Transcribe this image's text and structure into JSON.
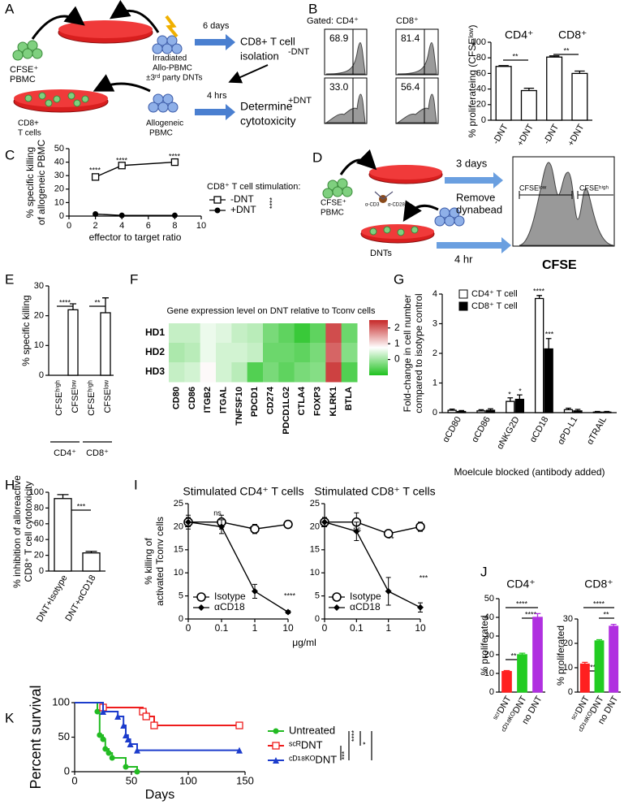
{
  "panels": [
    "A",
    "B",
    "C",
    "D",
    "E",
    "F",
    "G",
    "H",
    "I",
    "J",
    "K"
  ],
  "diagram_a": {
    "texts": [
      "CFSE⁺",
      "PBMC",
      "Irradiated",
      "Allo-PBMC",
      "±3ʳᵈ party DNTs",
      "6 days",
      "CD8+ T cell",
      "isolation",
      "CD8+",
      "T cells",
      "Allogeneic",
      "PBMC",
      "4 hrs",
      "Determine",
      "cytotoxicity"
    ]
  },
  "flow_b": {
    "col_labels": [
      "Gated: CD4⁺",
      "CD8⁺"
    ],
    "row_labels": [
      "-DNT",
      "+DNT"
    ],
    "values": [
      [
        68.9,
        81.4
      ],
      [
        33,
        56.4
      ]
    ],
    "value_labels": [
      [
        "68.9",
        "81.4"
      ],
      [
        "33.0",
        "56.4"
      ]
    ]
  },
  "diagram_d": {
    "texts": [
      "CFSE⁺",
      "PBMC",
      "α-CD3",
      "α-CD28",
      "3 days",
      "Remove",
      "dynabead",
      "4 hr",
      "DNTs",
      "CFSEˡᵒʷ",
      "CFSEʰⁱᵍʰ",
      "CFSE"
    ]
  },
  "chart_data": [
    {
      "type": "bar",
      "categories": [
        "-DNT",
        "+DNT",
        "-DNT",
        "+DNT"
      ],
      "values": [
        69,
        38,
        81,
        60
      ],
      "errors": [
        1,
        3,
        1.5,
        3
      ],
      "color": "#ffffff",
      "stroke": "#000000",
      "ylim": [
        0,
        100
      ],
      "yticks": [
        0,
        20,
        40,
        60,
        80,
        100
      ],
      "ylabel": [
        "% proliferateing (CFSEˡᵒʷ)"
      ],
      "groups": [
        "CD4⁺",
        "CD8⁺"
      ],
      "annotations": [
        "**",
        "**"
      ]
    },
    {
      "type": "line",
      "x": [
        2,
        4,
        8
      ],
      "xlim": [
        0,
        10
      ],
      "xticks": [
        0,
        2,
        4,
        6,
        8,
        10
      ],
      "ylim": [
        0,
        50
      ],
      "yticks": [
        0,
        10,
        20,
        30,
        40,
        50
      ],
      "xlabel": "effector to target ratio",
      "ylabel": [
        "% specific killing",
        "of allogeneic PBMC"
      ],
      "legend_title": "CD8⁺ T cell stimulation:",
      "series": [
        {
          "name": "-DNT",
          "color": "#000000",
          "marker": "square",
          "values": [
            29,
            37.5,
            40
          ]
        },
        {
          "name": "+DNT",
          "color": "#000000",
          "marker": "circle",
          "values": [
            1.5,
            0.5,
            0.5
          ]
        }
      ],
      "annotations": [
        "****",
        "****",
        "****",
        "****"
      ]
    },
    {
      "type": "bar",
      "categories": [
        "CFSEʰⁱᵍʰ",
        "CFSEˡᵒʷ",
        "CFSEʰⁱᵍʰ",
        "CFSEˡᵒʷ"
      ],
      "values": [
        0,
        22,
        0,
        21
      ],
      "errors": [
        null,
        2,
        null,
        5
      ],
      "color": "#ffffff",
      "stroke": "#000000",
      "ylim": [
        0,
        30
      ],
      "yticks": [
        0,
        10,
        20,
        30
      ],
      "ylabel": [
        "% specific killing"
      ],
      "groups": [
        "CD4⁺",
        "CD8⁺"
      ],
      "annotations": [
        "****",
        "**"
      ]
    },
    {
      "type": "heatmap",
      "title": "Gene expression level on DNT relative to Tconv cells",
      "rows": [
        "HD1",
        "HD2",
        "HD3"
      ],
      "columns": [
        "CD80",
        "CD86",
        "ITGB2",
        "ITGAL",
        "TNFSF10",
        "PDCD1",
        "CD274",
        "PDCD1LG2",
        "CTLA4",
        "FOXP3",
        "KLRK1",
        "BTLA"
      ],
      "values": [
        [
          0.3,
          0.3,
          0.6,
          0.5,
          0.3,
          0.2,
          -0.3,
          -0.5,
          -0.8,
          -0.5,
          2.2,
          -0.4
        ],
        [
          0.1,
          0.2,
          0.6,
          0.4,
          0.4,
          0.3,
          -0.4,
          -0.4,
          -0.5,
          -0.3,
          2.0,
          -0.2
        ],
        [
          0.3,
          0.4,
          0.8,
          0.4,
          0.2,
          -0.6,
          -0.3,
          -0.5,
          -0.3,
          -0.2,
          2.3,
          -0.6
        ]
      ],
      "zlim": [
        -1,
        2.5
      ],
      "zticks": [
        0,
        1,
        2
      ],
      "colors": [
        "#1fc21f",
        "#ffffff",
        "#c62828"
      ]
    },
    {
      "type": "bar",
      "categories": [
        "αCD80",
        "αCD86",
        "αNKG2D",
        "αCD18",
        "αPD-L1",
        "αTRAIL"
      ],
      "series": [
        {
          "name": "CD4⁺ T cell",
          "color": "#ffffff",
          "values": [
            0.08,
            0.06,
            0.38,
            3.85,
            0.1,
            0.02
          ],
          "errors": [
            0.04,
            0.04,
            0.12,
            0.1,
            0.05,
            0.02
          ]
        },
        {
          "name": "CD8⁺ T cell",
          "color": "#000000",
          "values": [
            0.04,
            0.08,
            0.45,
            2.15,
            0.06,
            0.02
          ],
          "errors": [
            0.03,
            0.05,
            0.15,
            0.35,
            0.05,
            0.02
          ]
        }
      ],
      "stroke": "#000000",
      "ylim": [
        0,
        4
      ],
      "yticks": [
        0,
        1,
        2,
        3,
        4
      ],
      "ylabel": [
        "Fold-change in cell number",
        "compared to isotype control"
      ],
      "xlabel": "Moelcule blocked (antibody added)",
      "annotations": [
        "*",
        "*",
        "****",
        "***"
      ]
    },
    {
      "type": "bar",
      "categories": [
        "DNT+Isotype",
        "DNT+αCD18"
      ],
      "values": [
        92,
        23
      ],
      "errors": [
        5,
        2
      ],
      "color": "#ffffff",
      "stroke": "#000000",
      "ylim": [
        0,
        100
      ],
      "yticks": [
        0,
        20,
        40,
        60,
        80,
        100
      ],
      "ylabel": [
        "% inhibition of alloreactive",
        "CD8⁺ T cell cytotoxicity"
      ],
      "annotations": [
        "***"
      ]
    },
    {
      "type": "line",
      "title": "Stimulated CD4⁺ T cells",
      "categories": [
        "0",
        "0.1",
        "1",
        "10"
      ],
      "ylim": [
        0,
        25
      ],
      "yticks": [
        0,
        5,
        10,
        15,
        20,
        25
      ],
      "ylabel": [
        "% killing of",
        "activated Tconv cells"
      ],
      "series": [
        {
          "name": "Isotype",
          "color": "#000000",
          "marker": "open-circle",
          "values": [
            21,
            21,
            19.5,
            20.5
          ],
          "errors": [
            1.5,
            1.5,
            1,
            0.5
          ]
        },
        {
          "name": "αCD18",
          "color": "#000000",
          "marker": "diamond",
          "values": [
            21,
            20,
            6,
            1.5
          ],
          "errors": [
            1,
            1.5,
            1.5,
            0.3
          ]
        }
      ],
      "annotations": [
        "ns",
        "***",
        "****"
      ]
    },
    {
      "type": "line",
      "title": "Stimulated CD8⁺ T  cells",
      "categories": [
        "0",
        "0.1",
        "1",
        "10"
      ],
      "ylim": [
        0,
        25
      ],
      "yticks": [
        0,
        5,
        10,
        15,
        20,
        25
      ],
      "xlabel": "μg/ml",
      "series": [
        {
          "name": "Isotype",
          "color": "#000000",
          "marker": "open-circle",
          "values": [
            21,
            21,
            18.5,
            20
          ],
          "errors": [
            1,
            2,
            0.5,
            1
          ]
        },
        {
          "name": "αCD18",
          "color": "#000000",
          "marker": "diamond",
          "values": [
            21,
            19,
            6,
            2.5
          ],
          "errors": [
            1,
            2,
            3,
            1
          ]
        }
      ],
      "annotations": [
        "ns",
        "**",
        "***"
      ]
    },
    {
      "type": "bar",
      "title": "CD4⁺",
      "categories": [
        "ˢᶜʳDNT",
        "ᶜᴰ¹⁸ᴷᴼDNT",
        "no DNT"
      ],
      "values": [
        11,
        20,
        40
      ],
      "errors": [
        0.5,
        0.8,
        2
      ],
      "colors": [
        "#ff2020",
        "#22cc22",
        "#b030e0"
      ],
      "ylim": [
        0,
        50
      ],
      "yticks": [
        0,
        10,
        20,
        30,
        40,
        50
      ],
      "ylabel": [
        "% proliferated"
      ],
      "annotations": [
        "**",
        "****",
        "****"
      ]
    },
    {
      "type": "bar",
      "title": "CD8⁺",
      "categories": [
        "ˢᶜʳDNT",
        "ᶜᴰ¹⁸ᴷᴼDNT",
        "no DNT"
      ],
      "values": [
        11.5,
        21,
        27
      ],
      "errors": [
        0.7,
        0.5,
        0.8
      ],
      "colors": [
        "#ff2020",
        "#22cc22",
        "#b030e0"
      ],
      "ylim": [
        0,
        30
      ],
      "yticks": [
        0,
        10,
        20,
        30
      ],
      "ylabel": [
        "% proliferated"
      ],
      "annotations": [
        "***",
        "****",
        "**"
      ]
    },
    {
      "type": "line",
      "step": true,
      "xlim": [
        0,
        150
      ],
      "xticks": [
        0,
        50,
        100,
        150
      ],
      "ylim": [
        0,
        100
      ],
      "yticks": [
        0,
        50,
        100
      ],
      "xlabel": "Days",
      "ylabel": [
        "Percent survival"
      ],
      "series": [
        {
          "name": "Untreated",
          "color": "#22bb22",
          "marker": "circle",
          "x": [
            0,
            20,
            22,
            25,
            27,
            30,
            33,
            45,
            55
          ],
          "values": [
            100,
            87,
            53,
            47,
            33,
            27,
            20,
            7,
            0
          ]
        },
        {
          "name": "ˢᶜᴿDNT",
          "color": "#ee1c1c",
          "marker": "square",
          "x": [
            0,
            25,
            60,
            63,
            70,
            145
          ],
          "values": [
            100,
            93,
            87,
            80,
            67,
            67
          ]
        },
        {
          "name": "ᶜᴰ¹⁸ᴷᴼDNT",
          "color": "#1c3ccc",
          "marker": "triangle",
          "x": [
            0,
            25,
            38,
            43,
            45,
            47,
            49,
            55,
            145
          ],
          "values": [
            100,
            87,
            80,
            67,
            53,
            47,
            40,
            31,
            31
          ]
        }
      ],
      "annotations": [
        "****",
        "***",
        "*"
      ]
    }
  ]
}
